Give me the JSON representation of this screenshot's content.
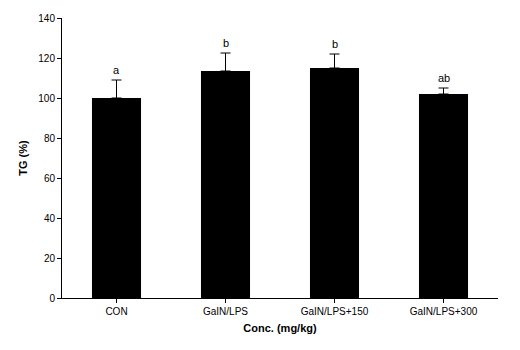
{
  "chart_data": {
    "type": "bar",
    "x_label": "Conc. (mg/kg)",
    "y_label": "TG (%)",
    "categories": [
      "CON",
      "GaIN/LPS",
      "GaIN/LPS+150",
      "GaIN/LPS+300"
    ],
    "values": [
      100,
      113.5,
      115,
      102
    ],
    "errors": [
      9,
      9,
      7,
      3
    ],
    "annotations": [
      "a",
      "b",
      "b",
      "ab"
    ],
    "color": "#000000",
    "ylim": [
      0,
      140
    ],
    "yticks": [
      0,
      20,
      40,
      60,
      80,
      100,
      120,
      140
    ],
    "grid": false
  }
}
